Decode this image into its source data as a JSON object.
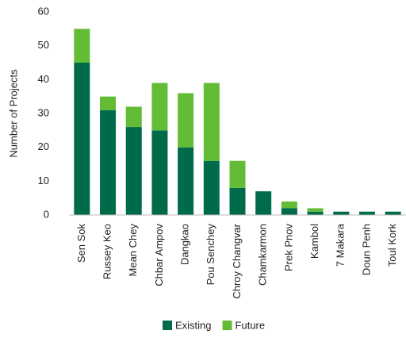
{
  "chart_data": {
    "type": "stacked-bar",
    "y_label": "Number of Projects",
    "categories": [
      "Sen Sok",
      "Russey Keo",
      "Mean Chey",
      "Chbar Ampov",
      "Dangkao",
      "Pou Senchey",
      "Chroy Changvar",
      "Chamkarmon",
      "Prek Pnov",
      "Kambol",
      "7 Makara",
      "Doun Penh",
      "Toul Kork"
    ],
    "series": [
      {
        "name": "Existing",
        "color": "#006b4a",
        "values": [
          45,
          31,
          26,
          25,
          20,
          16,
          8,
          7,
          2,
          1,
          1,
          1,
          1
        ]
      },
      {
        "name": "Future",
        "color": "#62bc35",
        "values": [
          10,
          4,
          6,
          14,
          16,
          23,
          8,
          0,
          2,
          1,
          0,
          0,
          0
        ]
      }
    ],
    "ylim": [
      0,
      60
    ],
    "yticks": [
      0,
      10,
      20,
      30,
      40,
      50,
      60
    ],
    "legend": "bottom"
  }
}
